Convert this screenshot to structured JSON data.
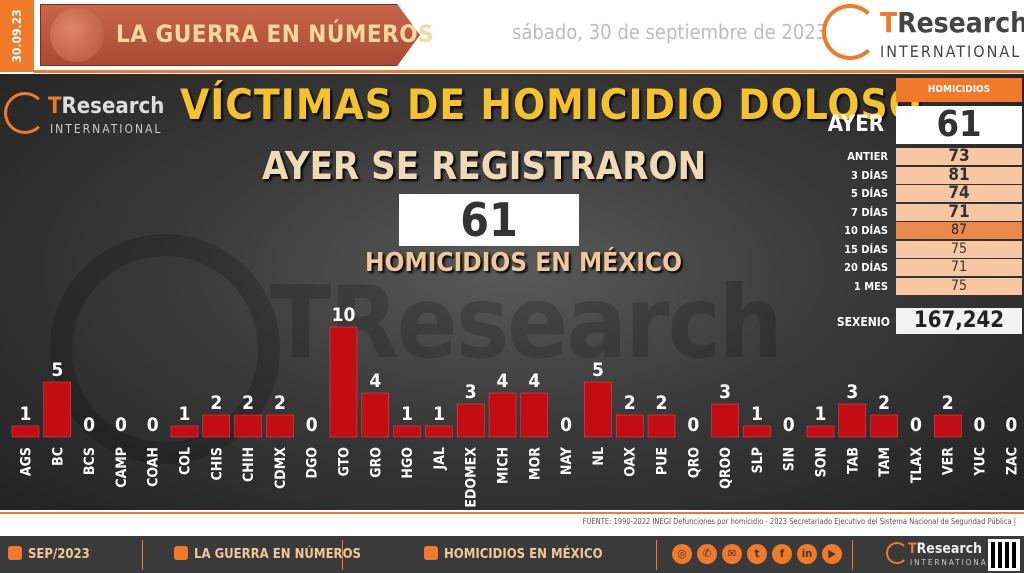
{
  "header": {
    "date_tab": "30.09.23",
    "banner_title": "LA GUERRA EN NÚMEROS",
    "date_text": "sábado, 30 de septiembre de 2023",
    "logo_name_t": "T",
    "logo_name_rest": "Research",
    "logo_intl": "INTERNATIONAL"
  },
  "main": {
    "title": "VÍCTIMAS DE HOMICIDIO DOLOSO",
    "subtitle": "AYER SE REGISTRARON",
    "big_value": "61",
    "under_title": "HOMICIDIOS EN MÉXICO",
    "watermark": "TResearch"
  },
  "stats": {
    "header": "HOMICIDIOS",
    "ayer_label": "AYER",
    "ayer_value": "61",
    "rows": [
      {
        "label": "ANTIER",
        "value": "73"
      },
      {
        "label": "3 DÍAS",
        "value": "81"
      },
      {
        "label": "5 DÍAS",
        "value": "74"
      },
      {
        "label": "7 DÍAS",
        "value": "71"
      },
      {
        "label": "10 DÍAS",
        "value": "87"
      },
      {
        "label": "15 DÍAS",
        "value": "75"
      },
      {
        "label": "20 DÍAS",
        "value": "71"
      },
      {
        "label": "1 MES",
        "value": "75"
      }
    ],
    "sexenio_label": "SEXENIO",
    "sexenio_value": "167,242",
    "colors": {
      "header": "#f07a2a",
      "row": "#f7c6a3",
      "highlight": "#e98a4a"
    }
  },
  "chart_data": {
    "type": "bar",
    "categories": [
      "AGS",
      "BC",
      "BCS",
      "CAMP",
      "COAH",
      "COL",
      "CHIS",
      "CHIH",
      "CDMX",
      "DGO",
      "GTO",
      "GRO",
      "HGO",
      "JAL",
      "EDOMEX",
      "MICH",
      "MOR",
      "NAY",
      "NL",
      "OAX",
      "PUE",
      "QRO",
      "QROO",
      "SLP",
      "SIN",
      "SON",
      "TAB",
      "TAM",
      "TLAX",
      "VER",
      "YUC",
      "ZAC"
    ],
    "values": [
      1,
      5,
      0,
      0,
      0,
      1,
      2,
      2,
      2,
      0,
      10,
      4,
      1,
      1,
      3,
      4,
      4,
      0,
      5,
      2,
      2,
      0,
      3,
      1,
      0,
      1,
      3,
      2,
      0,
      2,
      0,
      0
    ],
    "ylim": [
      0,
      10
    ],
    "bar_color": "#c40c14",
    "data_labels": true,
    "grid": false
  },
  "footer": {
    "source": "FUENTE: 1990-2022 INEGI Defunciones por homicidio - 2023 Secretariado Ejecutivo del Sistema Nacional de Seguridad Pública |",
    "period": "SEP/2023",
    "section": "LA GUERRA EN NÚMEROS",
    "topic": "HOMICIDIOS EN MÉXICO",
    "social_icons": [
      "web-icon",
      "phone-icon",
      "email-icon",
      "twitter-icon",
      "facebook-icon",
      "linkedin-icon",
      "youtube-icon"
    ]
  }
}
